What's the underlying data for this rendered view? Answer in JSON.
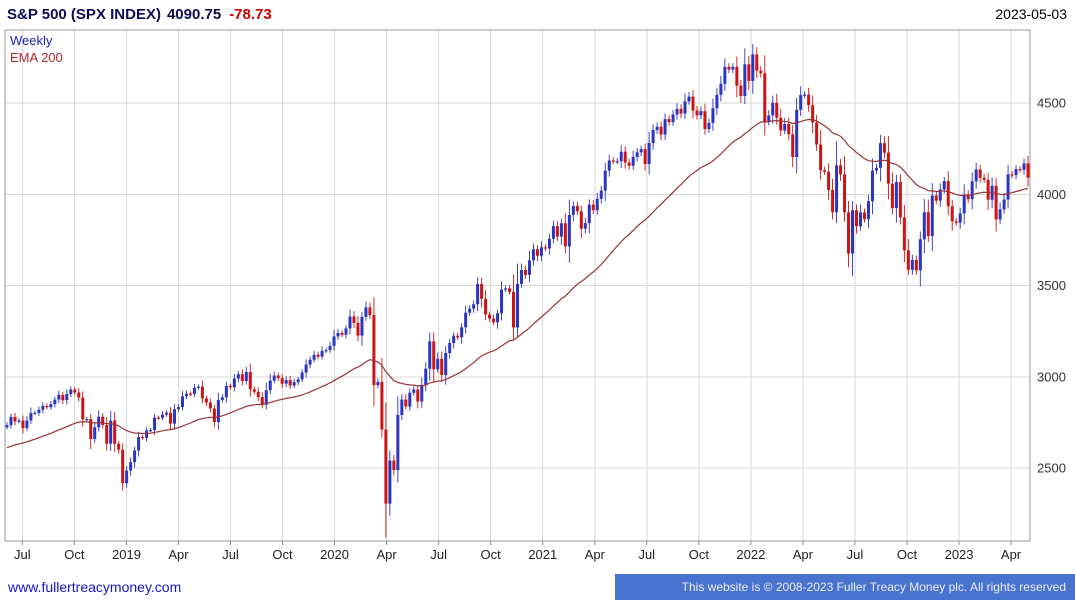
{
  "header": {
    "title": "S&P 500 (SPX INDEX)",
    "price": "4090.75",
    "change": "-78.73",
    "date": "2023-05-03"
  },
  "legend": {
    "interval": "Weekly",
    "overlay": "EMA 200"
  },
  "footer": {
    "link": "www.fullertreacymoney.com",
    "copyright": "This website is © 2008-2023 Fuller Treacy Money plc. All rights reserved"
  },
  "chart_data": {
    "type": "candlestick",
    "title": "S&P 500 (SPX INDEX)",
    "interval": "Weekly",
    "overlay": "EMA 200",
    "last_price": 4090.75,
    "change": -78.73,
    "as_of_date": "2023-05-03",
    "ylim": [
      2100,
      4900
    ],
    "y_ticks": [
      2500,
      3000,
      3500,
      4000,
      4500
    ],
    "grid": true,
    "up_color": "#2a35c0",
    "down_color": "#cc1414",
    "ema_color": "#993333",
    "ema_span_weeks": 40,
    "ema_seed_offset": 130,
    "x_ticks": [
      {
        "label": "Jul",
        "pos": 0.0169
      },
      {
        "label": "Oct",
        "pos": 0.0677
      },
      {
        "label": "2019",
        "pos": 0.1185
      },
      {
        "label": "Apr",
        "pos": 0.1692
      },
      {
        "label": "Jul",
        "pos": 0.22
      },
      {
        "label": "Oct",
        "pos": 0.2707
      },
      {
        "label": "2020",
        "pos": 0.3215
      },
      {
        "label": "Apr",
        "pos": 0.3723
      },
      {
        "label": "Jul",
        "pos": 0.4231
      },
      {
        "label": "Oct",
        "pos": 0.4738
      },
      {
        "label": "2021",
        "pos": 0.5246
      },
      {
        "label": "Apr",
        "pos": 0.5754
      },
      {
        "label": "Jul",
        "pos": 0.6261
      },
      {
        "label": "Oct",
        "pos": 0.6769
      },
      {
        "label": "2022",
        "pos": 0.7277
      },
      {
        "label": "Apr",
        "pos": 0.7784
      },
      {
        "label": "Jul",
        "pos": 0.8292
      },
      {
        "label": "Oct",
        "pos": 0.88
      },
      {
        "label": "2023",
        "pos": 0.9308
      },
      {
        "label": "Apr",
        "pos": 0.9815
      }
    ],
    "weekly_closes": [
      2735,
      2780,
      2755,
      2760,
      2718,
      2760,
      2801,
      2802,
      2819,
      2840,
      2833,
      2850,
      2875,
      2901,
      2872,
      2905,
      2930,
      2914,
      2886,
      2767,
      2768,
      2659,
      2723,
      2781,
      2736,
      2633,
      2760,
      2633,
      2600,
      2417,
      2486,
      2532,
      2596,
      2670,
      2665,
      2706,
      2708,
      2776,
      2775,
      2793,
      2803,
      2743,
      2822,
      2834,
      2893,
      2907,
      2905,
      2940,
      2946,
      2881,
      2859,
      2826,
      2752,
      2873,
      2887,
      2950,
      2942,
      2990,
      3014,
      2977,
      3026,
      2932,
      2918,
      2889,
      2847,
      2926,
      2979,
      3007,
      2992,
      2962,
      2982,
      2952,
      2970,
      2986,
      3023,
      3067,
      3093,
      3120,
      3110,
      3141,
      3146,
      3169,
      3221,
      3240,
      3230,
      3265,
      3330,
      3295,
      3226,
      3328,
      3380,
      3338,
      2954,
      2972,
      2711,
      2305,
      2541,
      2489,
      2790,
      2875,
      2837,
      2912,
      2930,
      2864,
      2955,
      3044,
      3194,
      3041,
      3098,
      3009,
      3130,
      3185,
      3225,
      3216,
      3271,
      3351,
      3373,
      3397,
      3508,
      3427,
      3341,
      3319,
      3298,
      3348,
      3477,
      3484,
      3465,
      3270,
      3509,
      3585,
      3558,
      3638,
      3699,
      3663,
      3709,
      3703,
      3756,
      3825,
      3768,
      3841,
      3714,
      3887,
      3935,
      3907,
      3811,
      3842,
      3943,
      3913,
      3975,
      4020,
      4129,
      4185,
      4180,
      4181,
      4233,
      4174,
      4156,
      4204,
      4230,
      4247,
      4166,
      4281,
      4352,
      4370,
      4327,
      4412,
      4395,
      4437,
      4468,
      4442,
      4509,
      4535,
      4459,
      4433,
      4455,
      4357,
      4391,
      4471,
      4545,
      4605,
      4698,
      4683,
      4698,
      4595,
      4538,
      4712,
      4621,
      4766,
      4677,
      4663,
      4398,
      4432,
      4501,
      4419,
      4349,
      4385,
      4329,
      4204,
      4463,
      4543,
      4546,
      4488,
      4393,
      4272,
      4132,
      4123,
      4024,
      3901,
      4158,
      4109,
      3901,
      3675,
      3912,
      3825,
      3900,
      3863,
      3962,
      4130,
      4145,
      4280,
      4228,
      4058,
      3924,
      4067,
      3873,
      3693,
      3586,
      3640,
      3583,
      3753,
      3901,
      3771,
      3993,
      3965,
      4026,
      4072,
      3934,
      3852,
      3844,
      3895,
      3999,
      3973,
      4071,
      4136,
      4090,
      4079,
      3970,
      4046,
      3862,
      3917,
      3971,
      4109,
      4105,
      4138,
      4134,
      4169,
      4091
    ]
  }
}
